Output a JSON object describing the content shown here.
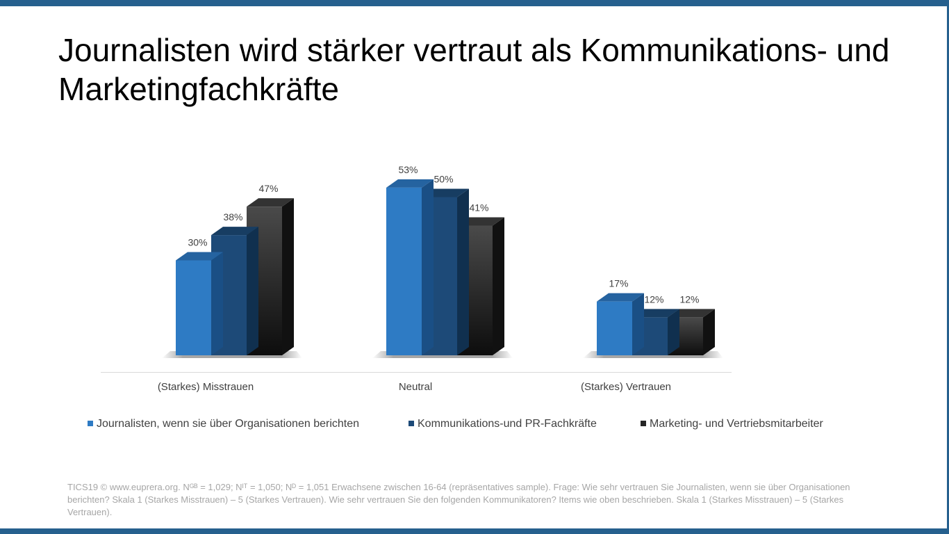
{
  "slide": {
    "title": "Journalisten wird stärker vertraut als Kommunikations- und Marketingfachkräfte",
    "footnote": "TICS19 © www.euprera.org. Nᴳᴮ = 1,029; Nᴵᵀ = 1,050; Nᴰ = 1,051 Erwachsene zwischen 16-64 (repräsentatives sample). Frage: Wie sehr vertrauen Sie Journalisten, wenn sie über Organisationen berichten? Skala 1 (Starkes Misstrauen) – 5 (Starkes Vertrauen). Wie sehr vertrauen Sie den folgenden Kommunikatoren? Items wie oben beschrieben. Skala 1 (Starkes Misstrauen) – 5 (Starkes Vertrauen).",
    "accent_color": "#26608e"
  },
  "chart_data": {
    "type": "bar",
    "style": "3d-clustered-column",
    "categories": [
      "(Starkes) Misstrauen",
      "Neutral",
      "(Starkes) Vertrauen"
    ],
    "series": [
      {
        "name": "Journalisten, wenn sie über Organisationen berichten",
        "values": [
          30,
          53,
          17
        ],
        "color": "#2e7bc4"
      },
      {
        "name": "Kommunikations-und PR-Fachkräfte",
        "values": [
          38,
          50,
          12
        ],
        "color": "#1d4a78"
      },
      {
        "name": "Marketing- und Vertriebsmitarbeiter",
        "values": [
          47,
          41,
          12
        ],
        "color": "#262626"
      }
    ],
    "value_suffix": "%",
    "ylim": [
      0,
      60
    ],
    "legend_position": "bottom",
    "grid": false
  }
}
